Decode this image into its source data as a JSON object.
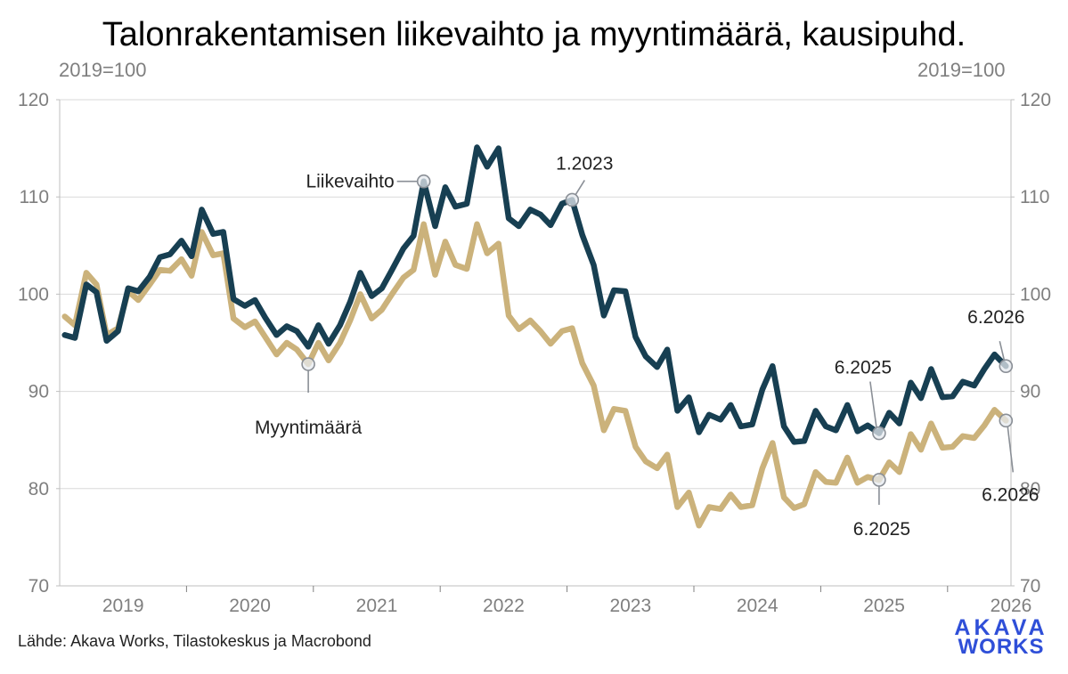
{
  "chart_data": {
    "type": "line",
    "title": "Talonrakentamisen liikevaihto ja myyntimäärä, kausipuhd.",
    "unit_left": "2019=100",
    "unit_right": "2019=100",
    "ylim": [
      70,
      120
    ],
    "yticks": [
      70,
      80,
      90,
      100,
      110,
      120
    ],
    "ytick_labels": [
      "70",
      "80",
      "90",
      "100",
      "110",
      "120"
    ],
    "xlim": [
      2019.0,
      2026.5
    ],
    "years": [
      "2019",
      "2020",
      "2021",
      "2022",
      "2023",
      "2024",
      "2025",
      "2026"
    ],
    "grid": "horizontal",
    "series": [
      {
        "name": "Liikevaihto",
        "color": "#173f52",
        "x": [
          2019.04,
          2019.12,
          2019.21,
          2019.29,
          2019.37,
          2019.46,
          2019.54,
          2019.62,
          2019.71,
          2019.79,
          2019.87,
          2019.96,
          2020.04,
          2020.12,
          2020.21,
          2020.29,
          2020.37,
          2020.46,
          2020.54,
          2020.62,
          2020.71,
          2020.79,
          2020.87,
          2020.96,
          2021.04,
          2021.12,
          2021.21,
          2021.29,
          2021.37,
          2021.46,
          2021.54,
          2021.62,
          2021.71,
          2021.79,
          2021.87,
          2021.96,
          2022.04,
          2022.12,
          2022.21,
          2022.29,
          2022.37,
          2022.46,
          2022.54,
          2022.62,
          2022.71,
          2022.79,
          2022.87,
          2022.96,
          2023.04,
          2023.12,
          2023.21,
          2023.29,
          2023.37,
          2023.46,
          2023.54,
          2023.62,
          2023.71,
          2023.79,
          2023.87,
          2023.96,
          2024.04,
          2024.12,
          2024.21,
          2024.29,
          2024.37,
          2024.46,
          2024.54,
          2024.62,
          2024.71,
          2024.79,
          2024.87,
          2024.96,
          2025.04,
          2025.12,
          2025.21,
          2025.29,
          2025.37,
          2025.46,
          2025.54,
          2025.62,
          2025.71,
          2025.79,
          2025.87,
          2025.96,
          2026.04,
          2026.12,
          2026.21,
          2026.29,
          2026.37,
          2026.46
        ],
        "values": [
          95.8,
          95.5,
          101,
          100.2,
          95.2,
          96.2,
          100.6,
          100.3,
          101.8,
          103.8,
          104.1,
          105.5,
          103.9,
          108.7,
          106.2,
          106.4,
          99.5,
          98.8,
          99.4,
          97.6,
          95.8,
          96.7,
          96.2,
          94.6,
          96.8,
          94.9,
          96.8,
          99.2,
          102.2,
          99.8,
          100.6,
          102.5,
          104.7,
          106,
          111.6,
          107,
          111,
          109,
          109.3,
          115.1,
          113.1,
          115,
          107.8,
          107,
          108.7,
          108.2,
          107.1,
          109.3,
          109.7,
          106.1,
          103,
          97.8,
          100.4,
          100.3,
          95.6,
          93.6,
          92.5,
          94.3,
          88,
          89.4,
          85.8,
          87.6,
          87.1,
          88.6,
          86.4,
          86.6,
          90.2,
          92.6,
          86.4,
          84.8,
          84.9,
          88,
          86.4,
          86,
          88.6,
          85.9,
          86.5,
          85.7,
          87.8,
          86.7,
          90.9,
          89.3,
          92.3,
          89.4,
          89.5,
          91,
          90.6,
          92.3,
          93.8,
          92.6
        ]
      },
      {
        "name": "Myyntimäärä",
        "color": "#cbb27b",
        "x": [
          2019.04,
          2019.12,
          2019.21,
          2019.29,
          2019.37,
          2019.46,
          2019.54,
          2019.62,
          2019.71,
          2019.79,
          2019.87,
          2019.96,
          2020.04,
          2020.12,
          2020.21,
          2020.29,
          2020.37,
          2020.46,
          2020.54,
          2020.62,
          2020.71,
          2020.79,
          2020.87,
          2020.96,
          2021.04,
          2021.12,
          2021.21,
          2021.29,
          2021.37,
          2021.46,
          2021.54,
          2021.62,
          2021.71,
          2021.79,
          2021.87,
          2021.96,
          2022.04,
          2022.12,
          2022.21,
          2022.29,
          2022.37,
          2022.46,
          2022.54,
          2022.62,
          2022.71,
          2022.79,
          2022.87,
          2022.96,
          2023.04,
          2023.12,
          2023.21,
          2023.29,
          2023.37,
          2023.46,
          2023.54,
          2023.62,
          2023.71,
          2023.79,
          2023.87,
          2023.96,
          2024.04,
          2024.12,
          2024.21,
          2024.29,
          2024.37,
          2024.46,
          2024.54,
          2024.62,
          2024.71,
          2024.79,
          2024.87,
          2024.96,
          2025.04,
          2025.12,
          2025.21,
          2025.29,
          2025.37,
          2025.46,
          2025.54,
          2025.62,
          2025.71,
          2025.79,
          2025.87,
          2025.96,
          2026.04,
          2026.12,
          2026.21,
          2026.29,
          2026.37,
          2026.46
        ],
        "values": [
          97.7,
          96.8,
          102.2,
          101,
          95.8,
          96.5,
          100.3,
          99.4,
          101,
          102.5,
          102.4,
          103.6,
          101.9,
          106.4,
          104,
          104.2,
          97.5,
          96.6,
          97.2,
          95.6,
          93.8,
          95,
          94.3,
          92.8,
          95,
          93.2,
          95,
          97.3,
          100,
          97.5,
          98.4,
          100,
          101.7,
          102.5,
          107.2,
          102,
          105.4,
          103,
          102.6,
          107.2,
          104.2,
          105.2,
          97.8,
          96.4,
          97.3,
          96.2,
          94.9,
          96.2,
          96.5,
          92.9,
          90.6,
          86,
          88.2,
          88,
          84.3,
          82.8,
          82.1,
          83.5,
          78.1,
          79.6,
          76.2,
          78.1,
          77.9,
          79.4,
          78.1,
          78.3,
          82.1,
          84.7,
          79.1,
          78,
          78.4,
          81.7,
          80.7,
          80.6,
          83.2,
          80.6,
          81.2,
          80.9,
          82.7,
          81.7,
          85.6,
          84,
          86.7,
          84.2,
          84.3,
          85.4,
          85.2,
          86.5,
          88.1,
          87
        ]
      }
    ],
    "annotations": {
      "liikevaihto_label": "Liikevaihto",
      "myyntimaara_label": "Myyntimäärä",
      "lv_2023_label": "1.2023",
      "lv_2025_label": "6.2025",
      "lv_2026_label": "6.2026",
      "mm_2025_label": "6.2025",
      "mm_2026_label": "6.2026"
    }
  },
  "footer": {
    "source": "Lähde: Akava Works, Tilastokeskus ja Macrobond",
    "logo_line1": "AKAVA",
    "logo_line2": "WORKS"
  }
}
